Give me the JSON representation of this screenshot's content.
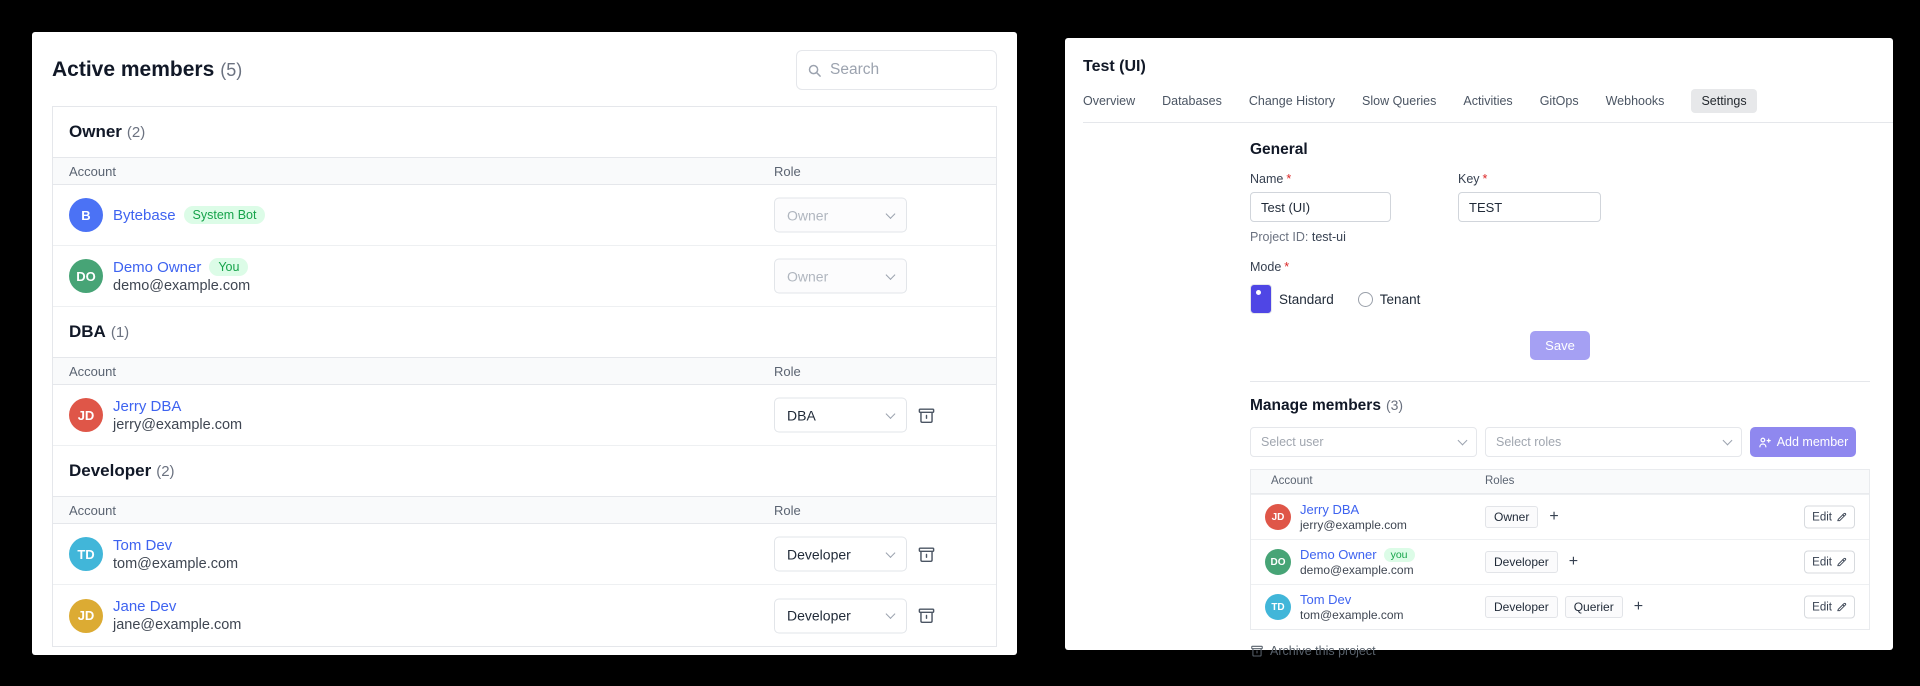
{
  "colors": {
    "accent_indigo": "#4f46e5",
    "save_button": "#a5a0f3",
    "add_member_button": "#8f88ef",
    "link_blue": "#3e63f0",
    "badge_green_bg": "#dcfce7",
    "badge_green_text": "#16a34a",
    "avatar_bytebase": "#4b72f5",
    "avatar_demo_owner": "#47a476",
    "avatar_jerry": "#df5648",
    "avatar_tom": "#41b6d9",
    "avatar_jane": "#dcab33"
  },
  "icons": {
    "search": "magnifier",
    "role_select": "chevron-down",
    "delete_member": "trash",
    "add_member": "person-plus",
    "edit": "pencil-square",
    "archive": "trash"
  },
  "left_panel": {
    "title": "Active members",
    "count": "(5)",
    "search_placeholder": "Search",
    "columns": {
      "account": "Account",
      "role": "Role"
    },
    "sections": [
      {
        "name": "Owner",
        "count": "(2)",
        "members": [
          {
            "initials": "B",
            "avatar_color": "#4b72f5",
            "name": "Bytebase",
            "badge": "System Bot",
            "email": "",
            "role": "Owner",
            "disabled": true,
            "deletable": false
          },
          {
            "initials": "DO",
            "avatar_color": "#47a476",
            "name": "Demo Owner",
            "badge": "You",
            "email": "demo@example.com",
            "role": "Owner",
            "disabled": true,
            "deletable": false
          }
        ]
      },
      {
        "name": "DBA",
        "count": "(1)",
        "members": [
          {
            "initials": "JD",
            "avatar_color": "#df5648",
            "name": "Jerry DBA",
            "badge": "",
            "email": "jerry@example.com",
            "role": "DBA",
            "disabled": false,
            "deletable": true
          }
        ]
      },
      {
        "name": "Developer",
        "count": "(2)",
        "members": [
          {
            "initials": "TD",
            "avatar_color": "#41b6d9",
            "name": "Tom Dev",
            "badge": "",
            "email": "tom@example.com",
            "role": "Developer",
            "disabled": false,
            "deletable": true
          },
          {
            "initials": "JD",
            "avatar_color": "#dcab33",
            "name": "Jane Dev",
            "badge": "",
            "email": "jane@example.com",
            "role": "Developer",
            "disabled": false,
            "deletable": true
          }
        ]
      }
    ]
  },
  "right_panel": {
    "title": "Test (UI)",
    "tabs": [
      {
        "label": "Overview",
        "active": false
      },
      {
        "label": "Databases",
        "active": false
      },
      {
        "label": "Change History",
        "active": false
      },
      {
        "label": "Slow Queries",
        "active": false
      },
      {
        "label": "Activities",
        "active": false
      },
      {
        "label": "GitOps",
        "active": false
      },
      {
        "label": "Webhooks",
        "active": false
      },
      {
        "label": "Settings",
        "active": true
      }
    ],
    "general": {
      "heading": "General",
      "name_label": "Name",
      "required_mark": "*",
      "name_value": "Test (UI)",
      "key_label": "Key",
      "key_value": "TEST",
      "project_id_label": "Project ID:",
      "project_id_value": "test-ui",
      "mode_label": "Mode",
      "modes": [
        {
          "label": "Standard",
          "selected": true
        },
        {
          "label": "Tenant",
          "selected": false
        }
      ],
      "save_label": "Save"
    },
    "manage": {
      "heading": "Manage members",
      "count": "(3)",
      "select_user_placeholder": "Select user",
      "select_roles_placeholder": "Select roles",
      "add_member_label": "Add member",
      "columns": {
        "account": "Account",
        "roles": "Roles"
      },
      "plus_label": "+",
      "edit_label": "Edit",
      "rows": [
        {
          "initials": "JD",
          "avatar_color": "#df5648",
          "name": "Jerry DBA",
          "badge": "",
          "email": "jerry@example.com",
          "roles": [
            "Owner"
          ]
        },
        {
          "initials": "DO",
          "avatar_color": "#47a476",
          "name": "Demo Owner",
          "badge": "you",
          "email": "demo@example.com",
          "roles": [
            "Developer"
          ]
        },
        {
          "initials": "TD",
          "avatar_color": "#41b6d9",
          "name": "Tom Dev",
          "badge": "",
          "email": "tom@example.com",
          "roles": [
            "Developer",
            "Querier"
          ]
        }
      ]
    },
    "archive_label": "Archive this project"
  }
}
